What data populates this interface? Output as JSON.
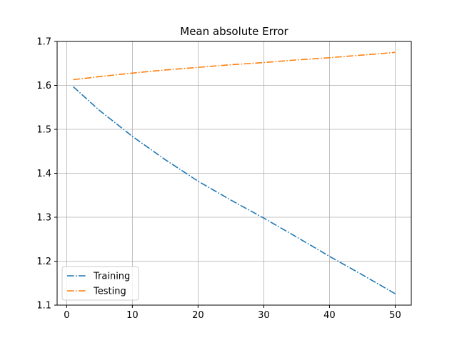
{
  "chart_data": {
    "type": "line",
    "title": "Mean absolute Error",
    "xlabel": "",
    "ylabel": "",
    "xlim": [
      -1.45,
      52.45
    ],
    "ylim": [
      1.1,
      1.7
    ],
    "xticks": [
      0,
      10,
      20,
      30,
      40,
      50
    ],
    "yticks": [
      1.1,
      1.2,
      1.3,
      1.4,
      1.5,
      1.6,
      1.7
    ],
    "grid": true,
    "legend_position": "lower-left",
    "x": [
      1,
      5,
      10,
      15,
      20,
      25,
      30,
      35,
      40,
      45,
      50
    ],
    "series": [
      {
        "name": "Training",
        "color": "#1f77b4",
        "linestyle": "dashdot",
        "values": [
          1.597,
          1.543,
          1.484,
          1.431,
          1.382,
          1.339,
          1.298,
          1.255,
          1.211,
          1.169,
          1.126
        ]
      },
      {
        "name": "Testing",
        "color": "#ff7f0e",
        "linestyle": "dashdot",
        "values": [
          1.613,
          1.62,
          1.628,
          1.635,
          1.641,
          1.647,
          1.652,
          1.658,
          1.663,
          1.669,
          1.675
        ]
      }
    ]
  }
}
